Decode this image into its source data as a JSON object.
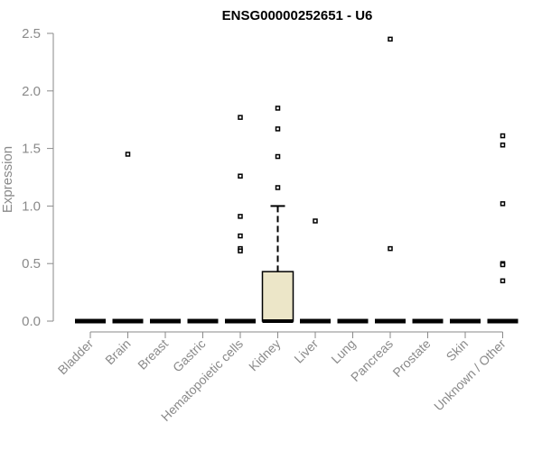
{
  "chart_data": {
    "type": "boxplot",
    "title": "ENSG00000252651 - U6",
    "xlabel": "",
    "ylabel": "Expression",
    "ylim": [
      0,
      2.5
    ],
    "yticks": [
      "0.0",
      "0.5",
      "1.0",
      "1.5",
      "2.0",
      "2.5"
    ],
    "categories": [
      "Bladder",
      "Brain",
      "Breast",
      "Gastric",
      "Hematopoietic cells",
      "Kidney",
      "Liver",
      "Lung",
      "Pancreas",
      "Prostate",
      "Skin",
      "Unknown / Other"
    ],
    "boxes": [
      {
        "category": "Bladder",
        "q1": 0,
        "median": 0,
        "q3": 0,
        "whisker_low": 0,
        "whisker_high": 0,
        "outliers": []
      },
      {
        "category": "Brain",
        "q1": 0,
        "median": 0,
        "q3": 0,
        "whisker_low": 0,
        "whisker_high": 0,
        "outliers": [
          1.45
        ]
      },
      {
        "category": "Breast",
        "q1": 0,
        "median": 0,
        "q3": 0,
        "whisker_low": 0,
        "whisker_high": 0,
        "outliers": []
      },
      {
        "category": "Gastric",
        "q1": 0,
        "median": 0,
        "q3": 0,
        "whisker_low": 0,
        "whisker_high": 0,
        "outliers": []
      },
      {
        "category": "Hematopoietic cells",
        "q1": 0,
        "median": 0,
        "q3": 0,
        "whisker_low": 0,
        "whisker_high": 0,
        "outliers": [
          1.77,
          1.26,
          0.91,
          0.74,
          0.63,
          0.61
        ]
      },
      {
        "category": "Kidney",
        "q1": 0,
        "median": 0,
        "q3": 0.43,
        "whisker_low": 0,
        "whisker_high": 1.0,
        "outliers": [
          1.85,
          1.67,
          1.43,
          1.16
        ]
      },
      {
        "category": "Liver",
        "q1": 0,
        "median": 0,
        "q3": 0,
        "whisker_low": 0,
        "whisker_high": 0,
        "outliers": [
          0.87
        ]
      },
      {
        "category": "Lung",
        "q1": 0,
        "median": 0,
        "q3": 0,
        "whisker_low": 0,
        "whisker_high": 0,
        "outliers": []
      },
      {
        "category": "Pancreas",
        "q1": 0,
        "median": 0,
        "q3": 0,
        "whisker_low": 0,
        "whisker_high": 0,
        "outliers": [
          2.45,
          0.63
        ]
      },
      {
        "category": "Prostate",
        "q1": 0,
        "median": 0,
        "q3": 0,
        "whisker_low": 0,
        "whisker_high": 0,
        "outliers": []
      },
      {
        "category": "Skin",
        "q1": 0,
        "median": 0,
        "q3": 0,
        "whisker_low": 0,
        "whisker_high": 0,
        "outliers": []
      },
      {
        "category": "Unknown / Other",
        "q1": 0,
        "median": 0,
        "q3": 0,
        "whisker_low": 0,
        "whisker_high": 0,
        "outliers": [
          1.61,
          1.53,
          1.02,
          0.5,
          0.49,
          0.35
        ]
      }
    ],
    "grid": false,
    "colors": {
      "box_fill": "#ece6c8",
      "box_stroke": "#000000",
      "axis": "#8a8a8a",
      "text": "#8a8a8a"
    }
  }
}
